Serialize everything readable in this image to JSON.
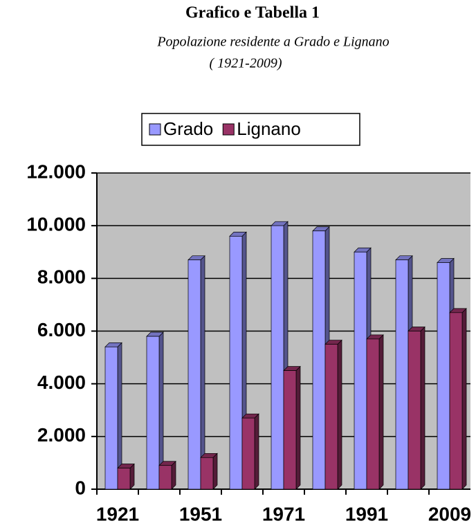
{
  "chart_data": {
    "type": "bar",
    "title": "Grafico e Tabella 1",
    "subtitle": [
      "Popolazione residente a Grado e Lignano",
      "( 1921-2009)"
    ],
    "categories": [
      "1921",
      null,
      "1951",
      null,
      "1971",
      null,
      "1991",
      null,
      "2009"
    ],
    "series": [
      {
        "name": "Grado",
        "color": "#9999ff",
        "values": [
          5400,
          5800,
          8700,
          9600,
          10000,
          9800,
          9000,
          8700,
          8600
        ]
      },
      {
        "name": "Lignano",
        "color": "#993366",
        "values": [
          800,
          900,
          1200,
          2700,
          4500,
          5500,
          5700,
          6000,
          6700
        ]
      }
    ],
    "ylim": [
      0,
      12000
    ],
    "yticks": [
      0,
      {
        "value": 2000,
        "label": "2.000"
      },
      {
        "value": 4000,
        "label": "4.000"
      },
      {
        "value": 6000,
        "label": "6.000"
      },
      {
        "value": 8000,
        "label": "8.000"
      },
      {
        "value": 10000,
        "label": "10.000"
      },
      {
        "value": 12000,
        "label": "12.000"
      }
    ],
    "grid": true,
    "legend": "top"
  }
}
